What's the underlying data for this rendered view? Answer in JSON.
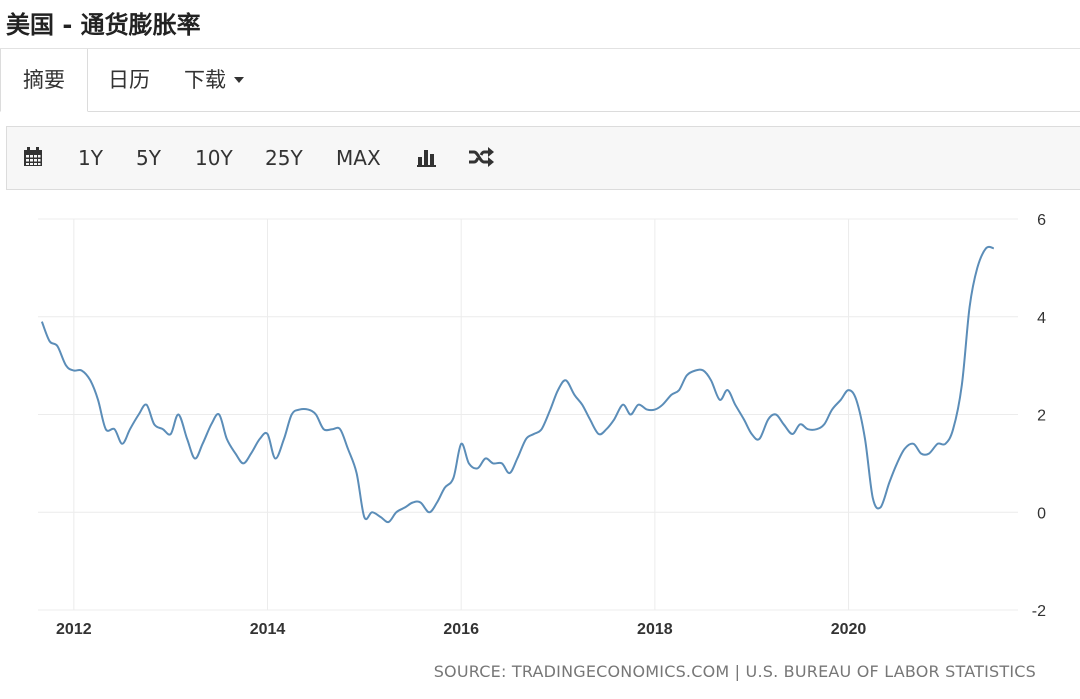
{
  "header": {
    "title": "美国 - 通货膨胀率"
  },
  "tabs": [
    {
      "label": "摘要",
      "active": true
    },
    {
      "label": "日历",
      "active": false
    },
    {
      "label": "下载",
      "active": false,
      "has_dropdown": true
    }
  ],
  "toolbar": {
    "calendar_icon": "calendar-icon",
    "ranges": [
      "1Y",
      "5Y",
      "10Y",
      "25Y",
      "MAX"
    ],
    "bar_chart_icon": "bar-chart-icon",
    "shuffle_icon": "shuffle-icon"
  },
  "chart_data": {
    "type": "line",
    "title": "",
    "xlabel": "",
    "ylabel": "",
    "x_ticks": [
      "2012",
      "2014",
      "2016",
      "2018",
      "2020"
    ],
    "y_ticks": [
      "6",
      "4",
      "2",
      "0",
      "-2"
    ],
    "ylim": [
      -2,
      6
    ],
    "xlim": [
      2011.63,
      2021.75
    ],
    "grid": true,
    "line_color": "#5b8db8",
    "series": [
      {
        "name": "",
        "x": [
          2011.67,
          2011.75,
          2011.83,
          2011.92,
          2012.0,
          2012.08,
          2012.17,
          2012.25,
          2012.33,
          2012.42,
          2012.5,
          2012.58,
          2012.67,
          2012.75,
          2012.83,
          2012.92,
          2013.0,
          2013.08,
          2013.17,
          2013.25,
          2013.33,
          2013.42,
          2013.5,
          2013.58,
          2013.67,
          2013.75,
          2013.83,
          2013.92,
          2014.0,
          2014.08,
          2014.17,
          2014.25,
          2014.33,
          2014.42,
          2014.5,
          2014.58,
          2014.67,
          2014.75,
          2014.83,
          2014.92,
          2015.0,
          2015.08,
          2015.17,
          2015.25,
          2015.33,
          2015.42,
          2015.5,
          2015.58,
          2015.67,
          2015.75,
          2015.83,
          2015.92,
          2016.0,
          2016.08,
          2016.17,
          2016.25,
          2016.33,
          2016.42,
          2016.5,
          2016.58,
          2016.67,
          2016.75,
          2016.83,
          2016.92,
          2017.0,
          2017.08,
          2017.17,
          2017.25,
          2017.33,
          2017.42,
          2017.5,
          2017.58,
          2017.67,
          2017.75,
          2017.83,
          2017.92,
          2018.0,
          2018.08,
          2018.17,
          2018.25,
          2018.33,
          2018.42,
          2018.5,
          2018.58,
          2018.67,
          2018.75,
          2018.83,
          2018.92,
          2019.0,
          2019.08,
          2019.17,
          2019.25,
          2019.33,
          2019.42,
          2019.5,
          2019.58,
          2019.67,
          2019.75,
          2019.83,
          2019.92,
          2020.0,
          2020.08,
          2020.17,
          2020.25,
          2020.33,
          2020.42,
          2020.5,
          2020.58,
          2020.67,
          2020.75,
          2020.83,
          2020.92,
          2021.0,
          2021.08,
          2021.17,
          2021.25,
          2021.33,
          2021.42,
          2021.5
        ],
        "values": [
          3.9,
          3.5,
          3.4,
          3.0,
          2.9,
          2.9,
          2.7,
          2.3,
          1.7,
          1.7,
          1.4,
          1.7,
          2.0,
          2.2,
          1.8,
          1.7,
          1.6,
          2.0,
          1.5,
          1.1,
          1.4,
          1.8,
          2.0,
          1.5,
          1.2,
          1.0,
          1.2,
          1.5,
          1.6,
          1.1,
          1.5,
          2.0,
          2.1,
          2.1,
          2.0,
          1.7,
          1.7,
          1.7,
          1.3,
          0.8,
          -0.1,
          0.0,
          -0.1,
          -0.2,
          0.0,
          0.1,
          0.2,
          0.2,
          0.0,
          0.2,
          0.5,
          0.7,
          1.4,
          1.0,
          0.9,
          1.1,
          1.0,
          1.0,
          0.8,
          1.1,
          1.5,
          1.6,
          1.7,
          2.1,
          2.5,
          2.7,
          2.4,
          2.2,
          1.9,
          1.6,
          1.7,
          1.9,
          2.2,
          2.0,
          2.2,
          2.1,
          2.1,
          2.2,
          2.4,
          2.5,
          2.8,
          2.9,
          2.9,
          2.7,
          2.3,
          2.5,
          2.2,
          1.9,
          1.6,
          1.5,
          1.9,
          2.0,
          1.8,
          1.6,
          1.8,
          1.7,
          1.7,
          1.8,
          2.1,
          2.3,
          2.5,
          2.3,
          1.5,
          0.3,
          0.1,
          0.6,
          1.0,
          1.3,
          1.4,
          1.2,
          1.2,
          1.4,
          1.4,
          1.7,
          2.6,
          4.2,
          5.0,
          5.4,
          5.4
        ]
      }
    ]
  },
  "source": "SOURCE: TRADINGECONOMICS.COM | U.S. BUREAU OF LABOR STATISTICS"
}
